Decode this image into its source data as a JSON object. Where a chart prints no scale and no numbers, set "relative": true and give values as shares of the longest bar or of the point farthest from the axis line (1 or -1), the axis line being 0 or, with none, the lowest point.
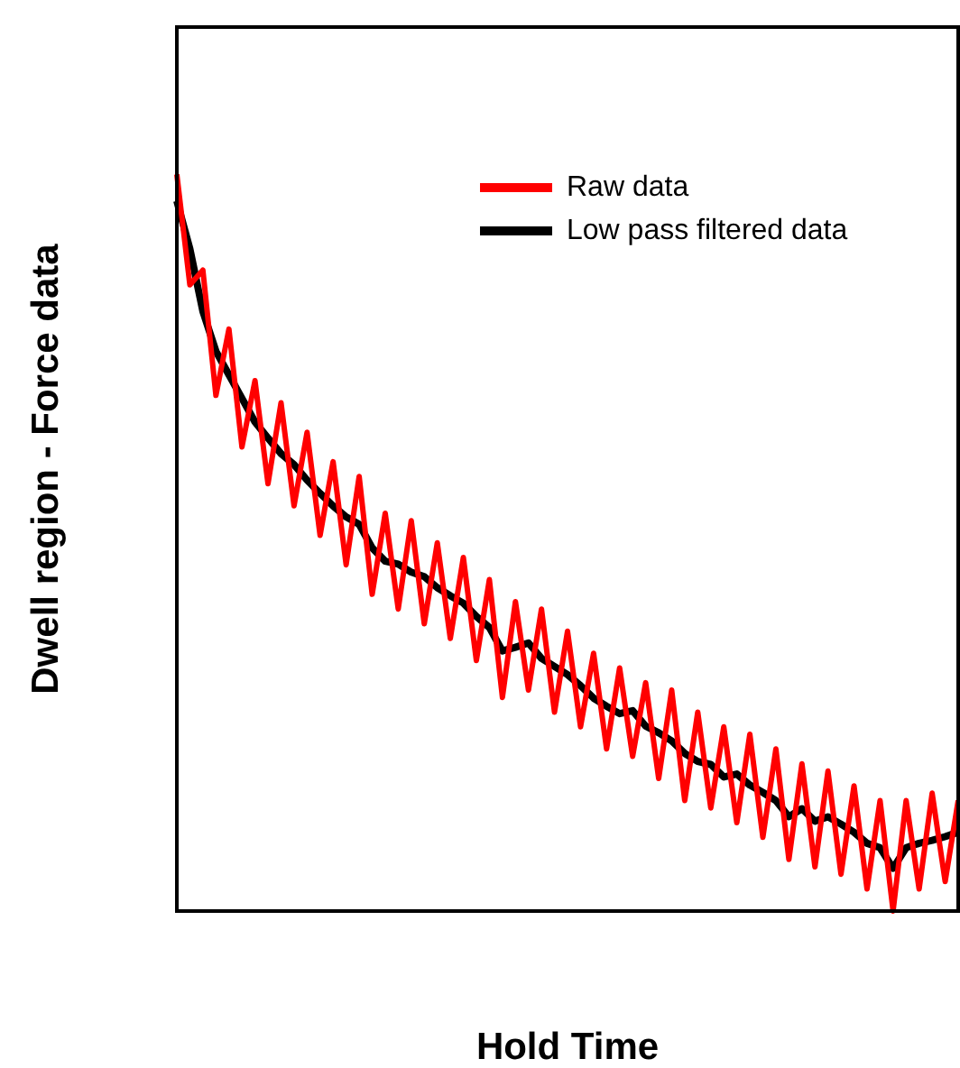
{
  "chart_data": {
    "type": "line",
    "relative": true,
    "xlabel": "Hold Time",
    "ylabel": "Dwell region - Force data",
    "legend": "top right",
    "marker": "none",
    "line_style": "solid",
    "categories": [
      null,
      null,
      null,
      null,
      null,
      null,
      null,
      null,
      null,
      null,
      null,
      null,
      null,
      null,
      null,
      null,
      null,
      null,
      null,
      null,
      null,
      null,
      null,
      null,
      null,
      null,
      null,
      null,
      null,
      null,
      null,
      null,
      null,
      null,
      null,
      null,
      null,
      null,
      null,
      null,
      null,
      null,
      null,
      null,
      null,
      null,
      null,
      null,
      null,
      null,
      null,
      null,
      null,
      null,
      null,
      null,
      null,
      null,
      null,
      null,
      null
    ],
    "series": [
      {
        "name": "Raw data",
        "color": "#ff0000",
        "values": [
          1.0,
          0.85,
          0.87,
          0.7,
          0.79,
          0.63,
          0.72,
          0.58,
          0.69,
          0.55,
          0.65,
          0.51,
          0.61,
          0.47,
          0.59,
          0.43,
          0.54,
          0.41,
          0.53,
          0.39,
          0.5,
          0.37,
          0.48,
          0.34,
          0.45,
          0.29,
          0.42,
          0.3,
          0.41,
          0.27,
          0.38,
          0.25,
          0.35,
          0.22,
          0.33,
          0.21,
          0.31,
          0.18,
          0.3,
          0.15,
          0.27,
          0.14,
          0.25,
          0.12,
          0.24,
          0.1,
          0.22,
          0.07,
          0.2,
          0.06,
          0.19,
          0.05,
          0.17,
          0.03,
          0.15,
          0.0,
          0.15,
          0.03,
          0.16,
          0.04,
          0.15
        ]
      },
      {
        "name": "Low pass filtered data",
        "color": "#000000",
        "values": [
          0.964,
          0.899,
          0.814,
          0.76,
          0.728,
          0.696,
          0.664,
          0.642,
          0.621,
          0.606,
          0.585,
          0.567,
          0.55,
          0.535,
          0.525,
          0.493,
          0.475,
          0.471,
          0.46,
          0.454,
          0.439,
          0.428,
          0.418,
          0.4,
          0.385,
          0.353,
          0.358,
          0.364,
          0.343,
          0.332,
          0.321,
          0.306,
          0.289,
          0.278,
          0.268,
          0.272,
          0.251,
          0.242,
          0.231,
          0.214,
          0.203,
          0.199,
          0.182,
          0.186,
          0.171,
          0.161,
          0.15,
          0.128,
          0.139,
          0.122,
          0.128,
          0.118,
          0.107,
          0.092,
          0.086,
          0.058,
          0.086,
          0.092,
          0.096,
          0.101,
          0.107
        ]
      }
    ]
  }
}
